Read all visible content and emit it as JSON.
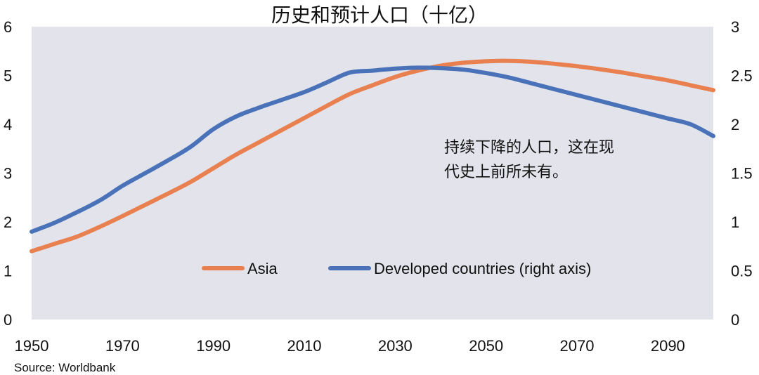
{
  "chart_data": {
    "type": "line",
    "title": "历史和预计人口（十亿）",
    "xlabel": "",
    "ylabel": "",
    "xlim": [
      1950,
      2100
    ],
    "ylim_left": [
      0,
      6
    ],
    "ylim_right": [
      0,
      3
    ],
    "x_ticks": [
      "1950",
      "1970",
      "1990",
      "2010",
      "2030",
      "2050",
      "2070",
      "2090"
    ],
    "left_ticks": [
      "0",
      "1",
      "2",
      "3",
      "4",
      "5",
      "6"
    ],
    "right_ticks": [
      "0",
      "0.5",
      "1",
      "1.5",
      "2",
      "2.5",
      "3"
    ],
    "plot_background": "#e3e3ec",
    "grid": false,
    "legend_position": "bottom-center",
    "annotation": [
      "持续下降的人口，这在现",
      "代史上前所未有。"
    ],
    "source": "Source: Worldbank",
    "series": [
      {
        "name": "Asia",
        "axis": "left",
        "color": "#e8814f",
        "x": [
          1950,
          1955,
          1960,
          1965,
          1970,
          1975,
          1980,
          1985,
          1990,
          1995,
          2000,
          2005,
          2010,
          2015,
          2020,
          2025,
          2030,
          2035,
          2040,
          2045,
          2050,
          2055,
          2060,
          2065,
          2070,
          2075,
          2080,
          2085,
          2090,
          2095,
          2100
        ],
        "y": [
          1.4,
          1.55,
          1.7,
          1.9,
          2.12,
          2.35,
          2.58,
          2.82,
          3.1,
          3.38,
          3.63,
          3.88,
          4.13,
          4.38,
          4.62,
          4.8,
          4.97,
          5.1,
          5.2,
          5.26,
          5.29,
          5.3,
          5.28,
          5.24,
          5.19,
          5.13,
          5.06,
          4.98,
          4.9,
          4.8,
          4.7
        ]
      },
      {
        "name": "Developed countries (right axis)",
        "axis": "right",
        "color": "#4a72b8",
        "x": [
          1950,
          1955,
          1960,
          1965,
          1970,
          1975,
          1980,
          1985,
          1990,
          1995,
          2000,
          2005,
          2010,
          2015,
          2020,
          2025,
          2030,
          2035,
          2040,
          2045,
          2050,
          2055,
          2060,
          2065,
          2070,
          2075,
          2080,
          2085,
          2090,
          2095,
          2100
        ],
        "y": [
          0.9,
          0.99,
          1.1,
          1.22,
          1.37,
          1.5,
          1.63,
          1.77,
          1.95,
          2.08,
          2.17,
          2.25,
          2.33,
          2.43,
          2.53,
          2.55,
          2.57,
          2.58,
          2.575,
          2.56,
          2.525,
          2.48,
          2.42,
          2.36,
          2.3,
          2.24,
          2.18,
          2.12,
          2.06,
          2.0,
          1.88
        ]
      }
    ]
  }
}
